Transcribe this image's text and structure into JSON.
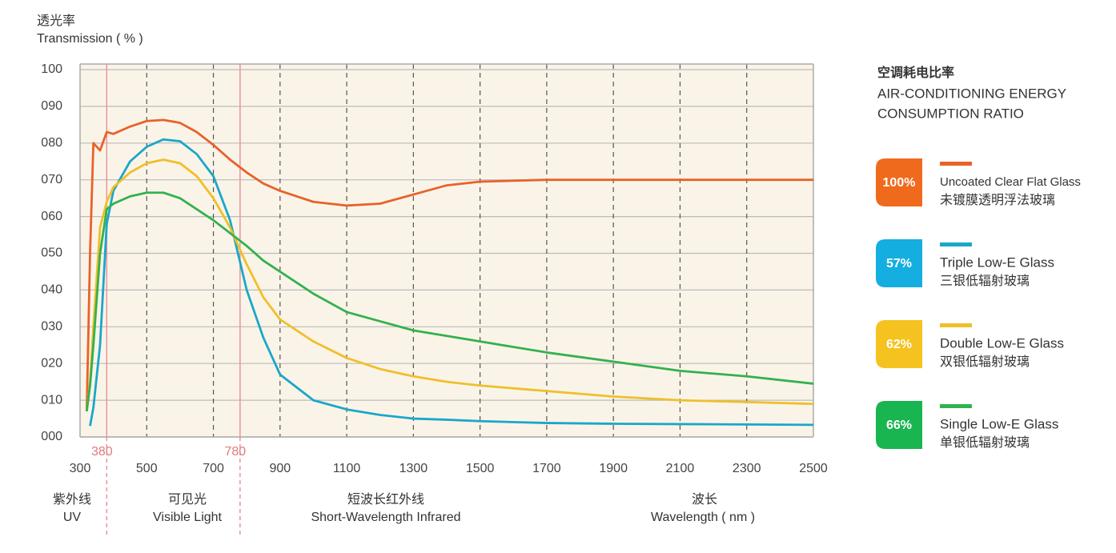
{
  "chart_data": {
    "type": "line",
    "ylabel_zh": "透光率",
    "ylabel": "Transmission ( % )",
    "xlabel_zh": "波长",
    "xlabel": "Wavelength ( nm )",
    "x": [
      320,
      330,
      340,
      360,
      380,
      400,
      450,
      500,
      550,
      600,
      650,
      700,
      750,
      800,
      850,
      900,
      1000,
      1100,
      1200,
      1300,
      1400,
      1500,
      1700,
      1900,
      2100,
      2300,
      2500
    ],
    "series": [
      {
        "name": "Uncoated Clear Flat Glass",
        "name_zh": "未镀膜透明浮法玻璃",
        "color": "#e8622a",
        "values": [
          7,
          50,
          80,
          78,
          83,
          82.5,
          84.5,
          86,
          86.3,
          85.5,
          83,
          79.5,
          75.5,
          72,
          69,
          67,
          64,
          63,
          63.5,
          66,
          68.5,
          69.5,
          70,
          70,
          70,
          70,
          70
        ]
      },
      {
        "name": "Triple Low-E Glass",
        "name_zh": "三银低辐射玻璃",
        "color": "#1aa7c9",
        "values": [
          null,
          3,
          8,
          25,
          58,
          67,
          75,
          79,
          81,
          80.5,
          77,
          71,
          59,
          40,
          27,
          17,
          10,
          7.5,
          6,
          5,
          4.7,
          4.3,
          3.8,
          3.6,
          3.5,
          3.4,
          3.3
        ]
      },
      {
        "name": "Double Low-E Glass",
        "name_zh": "双银低辐射玻璃",
        "color": "#f0bf2a",
        "values": [
          7,
          15,
          30,
          57,
          64,
          68,
          72,
          74.5,
          75.5,
          74.5,
          71,
          65,
          57,
          47,
          38,
          32,
          26,
          21.5,
          18.5,
          16.5,
          15,
          14,
          12.5,
          11,
          10,
          9.5,
          9
        ]
      },
      {
        "name": "Single Low-E Glass",
        "name_zh": "单银低辐射玻璃",
        "color": "#33b14f",
        "values": [
          7,
          14,
          25,
          50,
          62,
          63.5,
          65.5,
          66.5,
          66.5,
          65,
          62,
          59,
          55.5,
          52,
          48,
          45,
          39,
          34,
          31.5,
          29,
          27.5,
          26,
          23,
          20.5,
          18,
          16.5,
          14.5
        ]
      }
    ],
    "xlim": [
      300,
      2500
    ],
    "xticks": [
      300,
      500,
      700,
      900,
      1100,
      1300,
      1500,
      1700,
      1900,
      2100,
      2300,
      2500
    ],
    "ylim": [
      0,
      100
    ],
    "yticks": [
      {
        "value": 0,
        "label": "000"
      },
      {
        "value": 10,
        "label": "010"
      },
      {
        "value": 20,
        "label": "020"
      },
      {
        "value": 30,
        "label": "030"
      },
      {
        "value": 40,
        "label": "040"
      },
      {
        "value": 50,
        "label": "050"
      },
      {
        "value": 60,
        "label": "060"
      },
      {
        "value": 70,
        "label": "070"
      },
      {
        "value": 80,
        "label": "080"
      },
      {
        "value": 90,
        "label": "090"
      },
      {
        "value": 100,
        "label": "100"
      }
    ],
    "grid": true,
    "x_markers": [
      380,
      780
    ],
    "regions": [
      {
        "zh": "紫外线",
        "en": "UV"
      },
      {
        "zh": "可见光",
        "en": "Visible Light"
      },
      {
        "zh": "短波长红外线",
        "en": "Short-Wavelength Infrared"
      }
    ],
    "legend_title_zh": "空调耗电比率",
    "legend_title": [
      "AIR-CONDITIONING ENERGY",
      "CONSUMPTION RATIO"
    ],
    "energy_ratio": {
      "values": [
        100,
        57,
        62,
        66
      ],
      "value_labels": [
        "100%",
        "57%",
        "62%",
        "66%"
      ],
      "colors": [
        "#f06a1e",
        "#14aee0",
        "#f5c220",
        "#18b550"
      ]
    }
  }
}
